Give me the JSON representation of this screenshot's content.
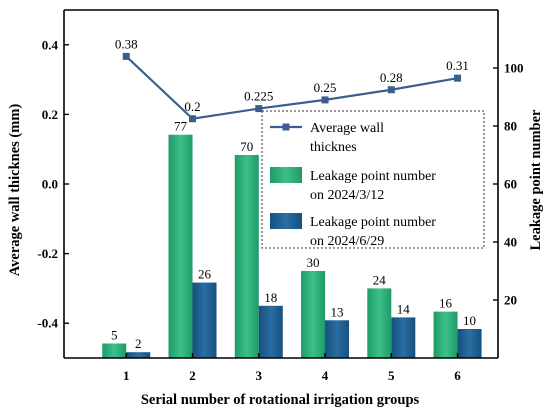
{
  "chart_data": {
    "type": "bar+line",
    "categories": [
      "1",
      "2",
      "3",
      "4",
      "5",
      "6"
    ],
    "xlabel": "Serial number of rotational irrigation groups",
    "y_left_label": "Average wall thicknes (mm)",
    "y_right_label": "Leakage point number",
    "y_left_range": [
      -0.5,
      0.5
    ],
    "y_left_ticks": [
      "-0.4",
      "-0.2",
      "0.0",
      "0.2",
      "0.4"
    ],
    "y_right_range": [
      0,
      120
    ],
    "y_right_ticks": [
      "20",
      "40",
      "60",
      "80",
      "100"
    ],
    "line_series": {
      "name": "Average wall thicknes",
      "axis": "right",
      "values": [
        104,
        82.5,
        86,
        89,
        92.5,
        96.5
      ],
      "labels": [
        "0.38",
        "0.2",
        "0.225",
        "0.25",
        "0.28",
        "0.31"
      ],
      "color": "#3a5f8f"
    },
    "bar_series": [
      {
        "name": "Leakage point number on 2024/3/12",
        "values": [
          5,
          77,
          70,
          30,
          24,
          16
        ],
        "color": "#2aa876"
      },
      {
        "name": "Leakage point number on 2024/6/29",
        "values": [
          2,
          26,
          18,
          13,
          14,
          10
        ],
        "color": "#1f5c8c"
      }
    ],
    "legend": {
      "placement": "right-middle",
      "entries": [
        [
          "Average wall",
          "thicknes"
        ],
        [
          "Leakage point number",
          "on 2024/3/12"
        ],
        [
          "Leakage point number",
          "on 2024/6/29"
        ]
      ]
    },
    "grid": false
  }
}
